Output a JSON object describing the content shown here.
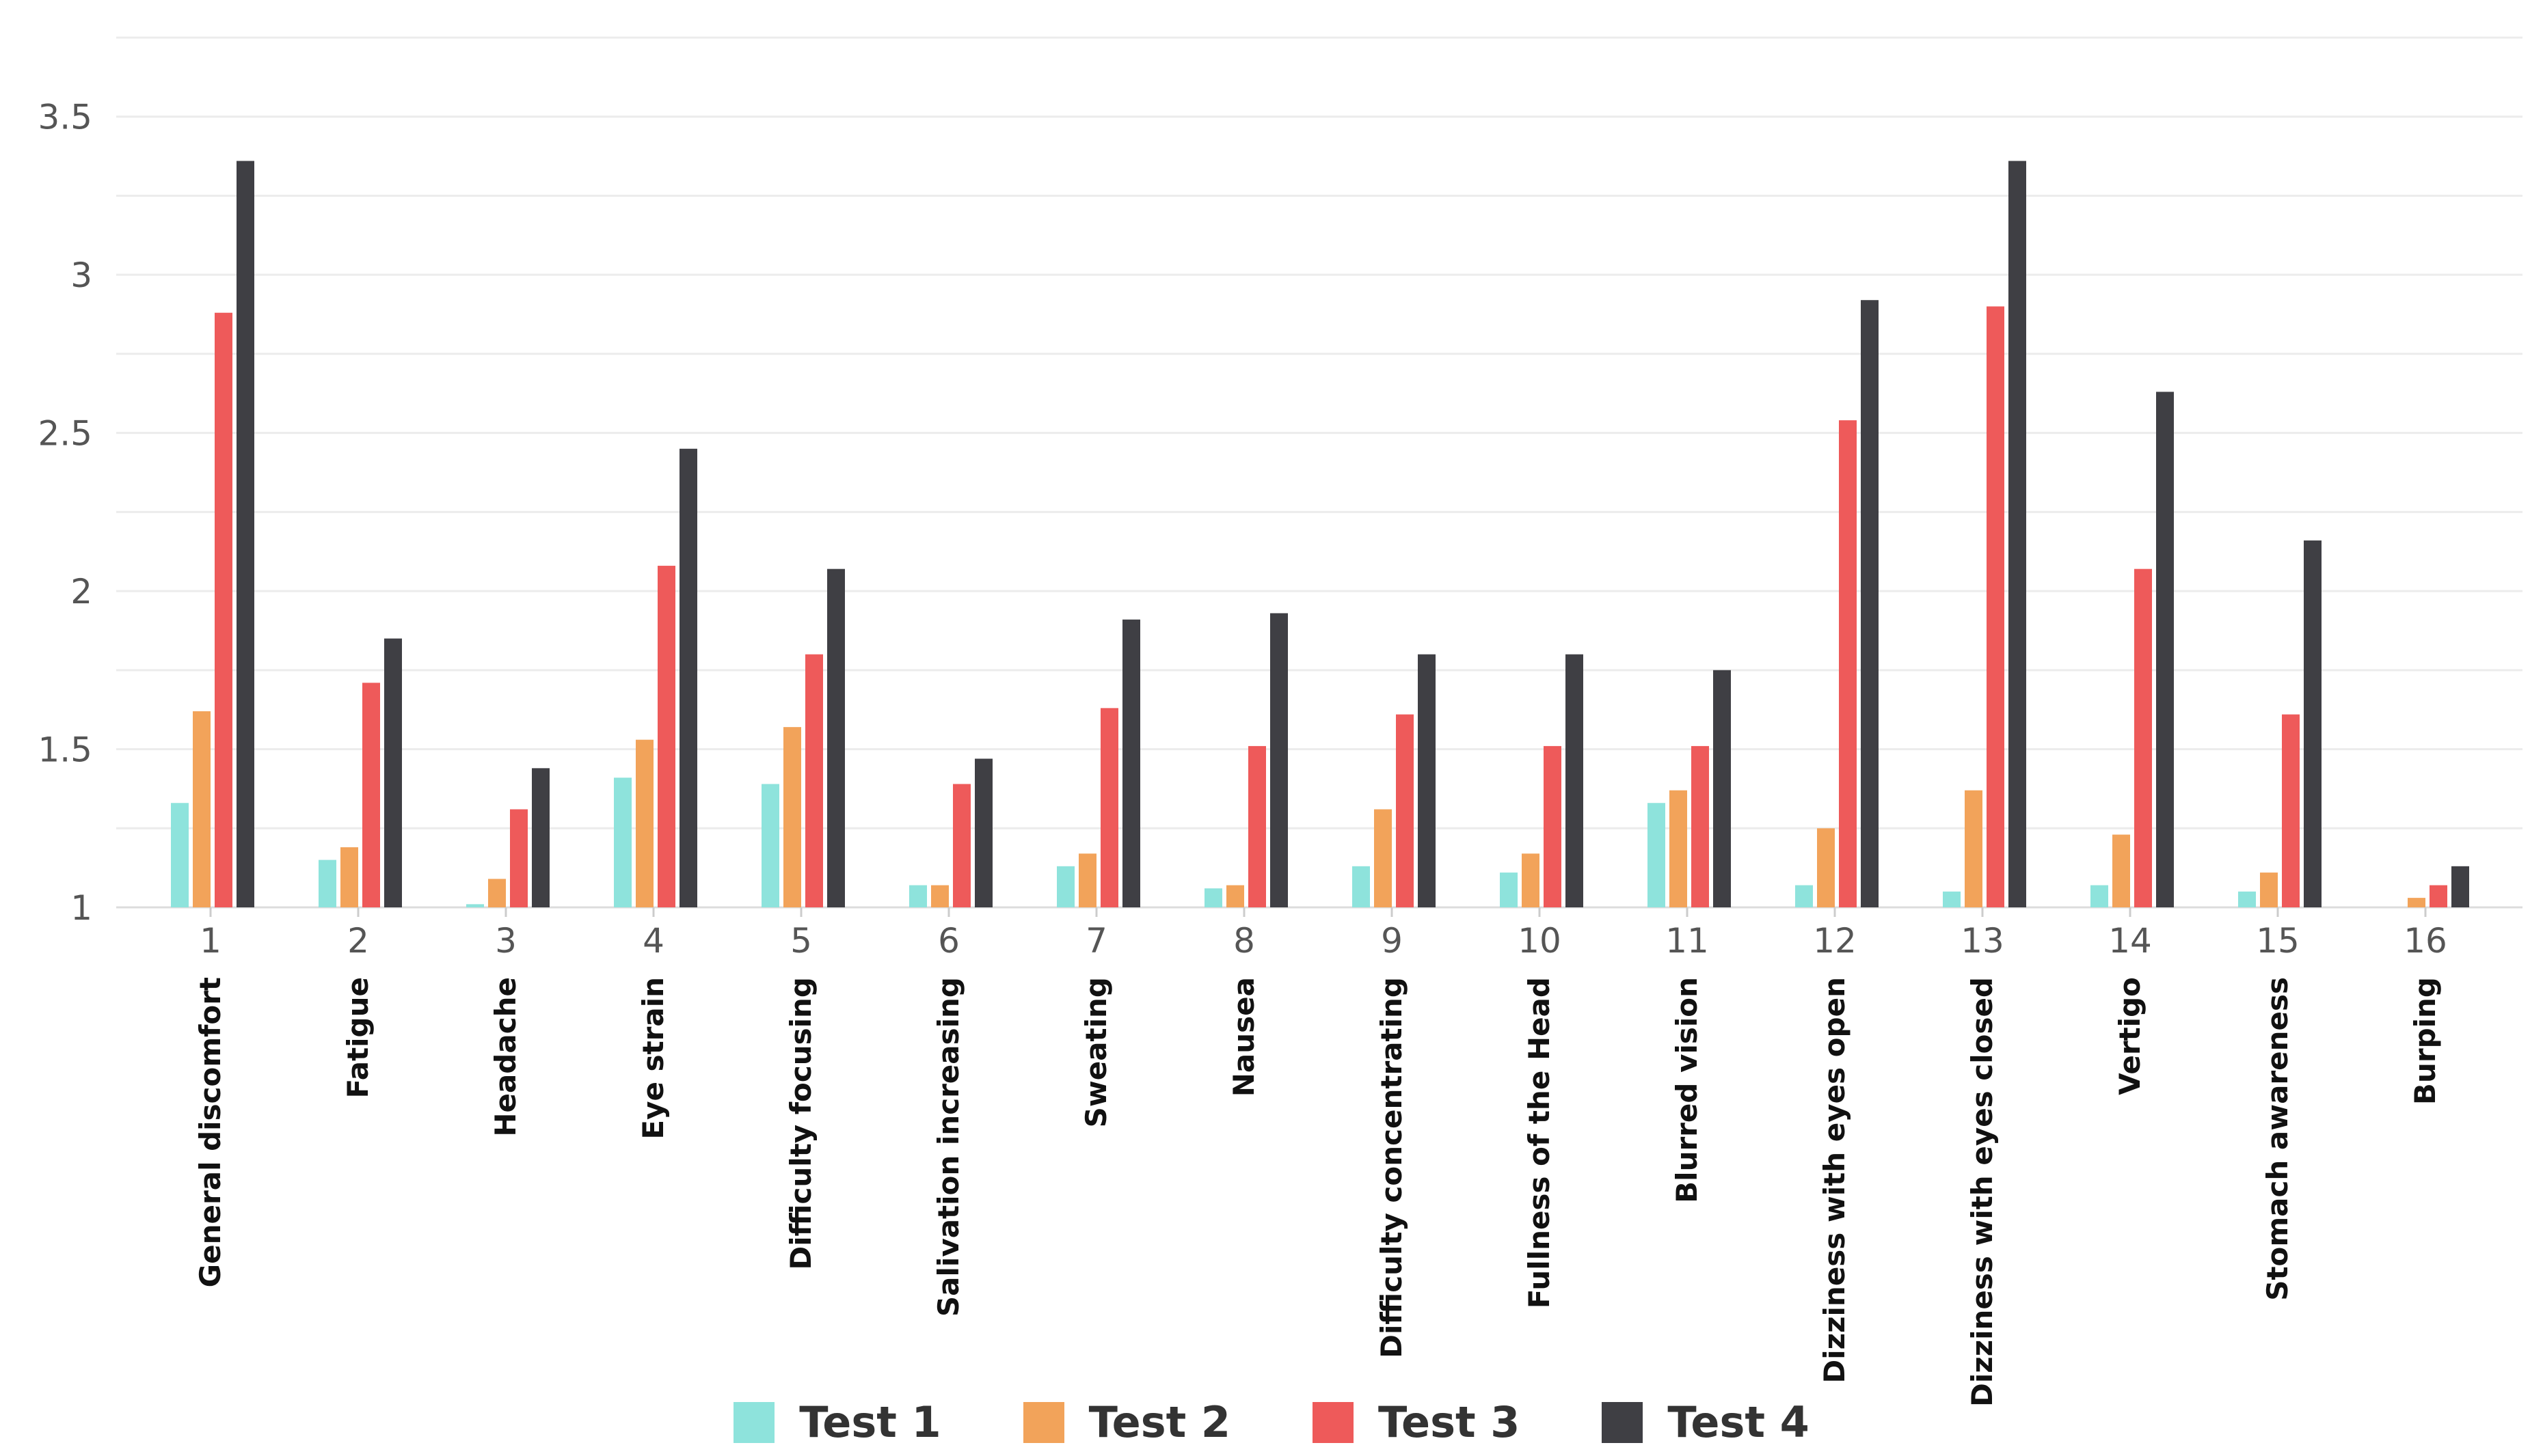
{
  "chart_data": {
    "type": "bar",
    "categories": [
      "1",
      "2",
      "3",
      "4",
      "5",
      "6",
      "7",
      "8",
      "9",
      "10",
      "11",
      "12",
      "13",
      "14",
      "15",
      "16"
    ],
    "category_names": [
      "General discomfort",
      "Fatigue",
      "Headache",
      "Eye strain",
      "Difficulty focusing",
      "Salivation increasing",
      "Sweating",
      "Nausea",
      "Difficulty concentrating",
      "Fullness of the Head",
      "Blurred vision",
      "Dizziness with eyes open",
      "Dizziness with eyes closed",
      "Vertigo",
      "Stomach awareness",
      "Burping"
    ],
    "series": [
      {
        "name": "Test 1",
        "color": "#8ee3dc",
        "values": [
          1.33,
          1.15,
          1.01,
          1.41,
          1.39,
          1.07,
          1.13,
          1.06,
          1.13,
          1.11,
          1.33,
          1.07,
          1.05,
          1.07,
          1.05,
          1.0
        ]
      },
      {
        "name": "Test 2",
        "color": "#f2a35a",
        "values": [
          1.62,
          1.19,
          1.09,
          1.53,
          1.57,
          1.07,
          1.17,
          1.07,
          1.31,
          1.17,
          1.37,
          1.25,
          1.37,
          1.23,
          1.11,
          1.03
        ]
      },
      {
        "name": "Test 3",
        "color": "#ee5a5a",
        "values": [
          2.88,
          1.71,
          1.31,
          2.08,
          1.8,
          1.39,
          1.63,
          1.51,
          1.61,
          1.51,
          1.51,
          2.54,
          2.9,
          2.07,
          1.61,
          1.07
        ]
      },
      {
        "name": "Test 4",
        "color": "#3f3f44",
        "values": [
          3.36,
          1.85,
          1.44,
          2.45,
          2.07,
          1.47,
          1.91,
          1.93,
          1.8,
          1.8,
          1.75,
          2.92,
          3.36,
          2.63,
          2.16,
          1.13
        ]
      }
    ],
    "yticks": [
      "1",
      "1.5",
      "2",
      "2.5",
      "3",
      "3.5"
    ],
    "ylim": [
      1,
      3.75
    ],
    "grid": true,
    "legend_position": "bottom"
  }
}
